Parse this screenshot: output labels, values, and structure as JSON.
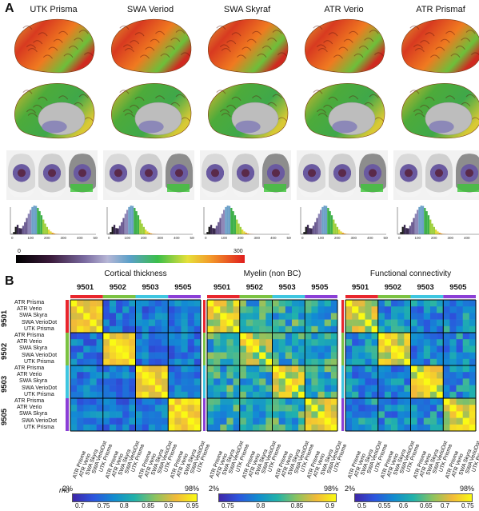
{
  "panel_a": {
    "letter": "A",
    "scanners": [
      "UTK Prisma",
      "SWA Veriod",
      "SWA Skyraf",
      "ATR Verio",
      "ATR Prismaf"
    ],
    "hist_ticks": [
      "0",
      "100",
      "200",
      "300",
      "400",
      "500"
    ],
    "colorbar": {
      "min": "0",
      "max": "300"
    }
  },
  "panel_b": {
    "letter": "B",
    "heatmaps": [
      {
        "title": "Cortical thickness",
        "cbar_ticks": [
          "0.7",
          "0.75",
          "0.8",
          "0.85",
          "0.9",
          "0.95"
        ]
      },
      {
        "title": "Myelin (non BC)",
        "cbar_ticks": [
          "0.75",
          "0.8",
          "0.85",
          "0.9"
        ]
      },
      {
        "title": "Functional connectivity",
        "cbar_ticks": [
          "0.5",
          "0.55",
          "0.6",
          "0.65",
          "0.7",
          "0.75"
        ]
      }
    ],
    "subjects": [
      "9501",
      "9502",
      "9503",
      "9505"
    ],
    "subject_colors": [
      "#e8262d",
      "#7cc242",
      "#3fc6e0",
      "#8b3fd6"
    ],
    "scanner_rows": [
      "ATR Prisma",
      "ATR Verio",
      "SWA Skyra",
      "SWA VerioDot",
      "UTK Prisma"
    ],
    "pct_low": "2%",
    "pct_high": "98%",
    "rho_label": "rho"
  }
}
